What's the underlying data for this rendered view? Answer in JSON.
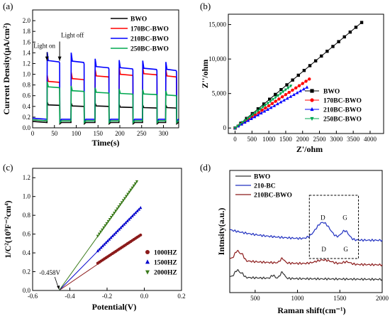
{
  "chart_data": [
    {
      "panel": "(a)",
      "type": "line",
      "xlabel": "Time(s)",
      "ylabel": "Current Density(μA/cm²)",
      "xlim": [
        0,
        335
      ],
      "ylim": [
        0,
        2.2
      ],
      "xticks": [
        0,
        50,
        100,
        150,
        200,
        250,
        300
      ],
      "yticks": [
        0.0,
        0.2,
        0.4,
        0.6,
        0.8,
        1.0,
        1.2,
        1.4,
        1.6,
        1.8,
        2.0
      ],
      "annotations": [
        {
          "text": "Light on",
          "x": 33,
          "y": 1.45
        },
        {
          "text": "Light off",
          "x": 62,
          "y": 1.65
        }
      ],
      "on_off_cycles": [
        [
          33,
          62
        ],
        [
          88,
          118
        ],
        [
          143,
          175
        ],
        [
          198,
          230
        ],
        [
          252,
          285
        ],
        [
          305,
          330
        ]
      ],
      "series": [
        {
          "name": "BWO",
          "color": "#000000",
          "dark": 0.1,
          "light": [
            0.42,
            0.4,
            0.4,
            0.38,
            0.37,
            0.37
          ]
        },
        {
          "name": "170BC-BWO",
          "color": "#ff0000",
          "dark": 0.13,
          "light": [
            0.85,
            0.9,
            0.95,
            0.98,
            0.99,
            0.95
          ]
        },
        {
          "name": "210BC-BWO",
          "color": "#0000ff",
          "dark": 0.16,
          "light": [
            1.23,
            1.22,
            1.12,
            1.1,
            1.09,
            1.07
          ]
        },
        {
          "name": "250BC-BWO",
          "color": "#00a850",
          "dark": 0.13,
          "light": [
            0.75,
            0.68,
            0.65,
            0.63,
            0.62,
            0.6
          ]
        }
      ]
    },
    {
      "panel": "(b)",
      "type": "scatter",
      "xlabel": "Z'/ohm",
      "ylabel": "Z''/ohm",
      "xlim": [
        -200,
        4400
      ],
      "ylim": [
        -800,
        16500
      ],
      "xticks": [
        0,
        500,
        1000,
        1500,
        2000,
        2500,
        3000,
        3500,
        4000
      ],
      "yticks": [
        0,
        5000,
        10000,
        15000
      ],
      "ytick_labels": [
        "0",
        "5,000",
        "10,000",
        "15,000"
      ],
      "series": [
        {
          "name": "BWO",
          "color": "#000000",
          "marker": "square",
          "x": [
            0,
            3750
          ],
          "y": [
            0,
            15300
          ]
        },
        {
          "name": "170BC-BWO",
          "color": "#ff0000",
          "marker": "circle",
          "x": [
            0,
            2200
          ],
          "y": [
            0,
            7100
          ]
        },
        {
          "name": "210BC-BWO",
          "color": "#0000ff",
          "marker": "triangle-up",
          "x": [
            0,
            2130
          ],
          "y": [
            0,
            5900
          ]
        },
        {
          "name": "250BC-BWO",
          "color": "#00a850",
          "marker": "triangle-down",
          "x": [
            0,
            1650
          ],
          "y": [
            0,
            6100
          ]
        }
      ]
    },
    {
      "panel": "(c)",
      "type": "scatter",
      "xlabel": "Potential(V)",
      "ylabel": "1/C²(10⁹F⁻²cm⁴)",
      "xlim": [
        -0.6,
        0.2
      ],
      "ylim": [
        0,
        1.3
      ],
      "xticks": [
        -0.6,
        -0.4,
        -0.2,
        0.0,
        0.2
      ],
      "xtick_labels": [
        "-0.6",
        "-0.4",
        "-0.2",
        "0.0",
        "0.2"
      ],
      "yticks": [
        0.0,
        0.2,
        0.4,
        0.6,
        0.8,
        1.0,
        1.2
      ],
      "annotations": [
        {
          "text": "-0.458V",
          "x": -0.458,
          "y": 0
        }
      ],
      "series": [
        {
          "name": "1000HZ",
          "color": "#8b1a1a",
          "marker": "circle",
          "x": [
            -0.25,
            -0.02
          ],
          "y": [
            0.29,
            0.59
          ],
          "fit_x0": -0.458
        },
        {
          "name": "1500HZ",
          "color": "#0000cc",
          "marker": "triangle-up",
          "x": [
            -0.25,
            -0.02
          ],
          "y": [
            0.42,
            0.88
          ],
          "fit_x0": -0.458
        },
        {
          "name": "2000HZ",
          "color": "#3a7a1a",
          "marker": "triangle-down",
          "x": [
            -0.25,
            -0.04
          ],
          "y": [
            0.58,
            1.16
          ],
          "fit_x0": -0.458
        }
      ]
    },
    {
      "panel": "(d)",
      "type": "line",
      "xlabel": "Raman shift(cm⁻¹)",
      "ylabel": "Intnsity(a.u.)",
      "xlim": [
        200,
        2000
      ],
      "xticks": [
        500,
        1000,
        1500,
        2000
      ],
      "annotations": [
        {
          "text": "D",
          "x": 1300,
          "trace": "210-BC"
        },
        {
          "text": "G",
          "x": 1560,
          "trace": "210-BC"
        },
        {
          "text": "D",
          "x": 1310,
          "trace": "210BC-BWO"
        },
        {
          "text": "G",
          "x": 1570,
          "trace": "210BC-BWO"
        }
      ],
      "highlight_box_x": [
        1140,
        1720
      ],
      "series": [
        {
          "name": "BWO",
          "color": "#333333",
          "offset": 0.0
        },
        {
          "name": "210-BC",
          "color": "#2030c0",
          "offset": 2.0
        },
        {
          "name": "210BC-BWO",
          "color": "#8b1a1a",
          "offset": 0.8
        }
      ]
    }
  ]
}
